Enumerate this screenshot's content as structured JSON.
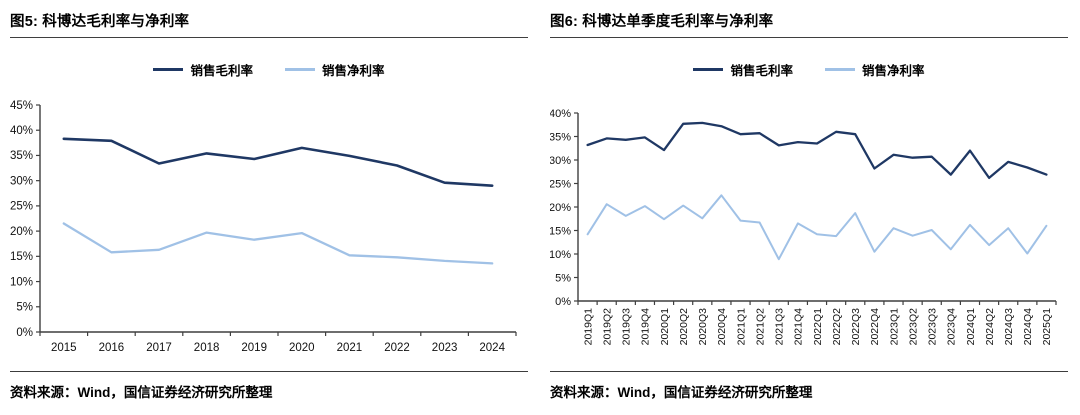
{
  "page": {
    "background": "#ffffff",
    "text_color": "#000000"
  },
  "panels": [
    {
      "title": "图5: 科博达毛利率与净利率",
      "legend": [
        {
          "label": "销售毛利率"
        },
        {
          "label": "销售净利率"
        }
      ],
      "source": "资料来源：Wind，国信证券经济研究所整理"
    },
    {
      "title": "图6: 科博达单季度毛利率与净利率",
      "legend": [
        {
          "label": "销售毛利率"
        },
        {
          "label": "销售净利率"
        }
      ],
      "source": "资料来源：Wind，国信证券经济研究所整理"
    }
  ],
  "chart_data": [
    {
      "type": "line",
      "title": "图5: 科博达毛利率与净利率",
      "xlabel": "",
      "ylabel": "",
      "categories": [
        "2015",
        "2016",
        "2017",
        "2018",
        "2019",
        "2020",
        "2021",
        "2022",
        "2023",
        "2024"
      ],
      "series": [
        {
          "name": "销售毛利率",
          "color": "#1F3864",
          "values": [
            38.3,
            37.9,
            33.4,
            35.4,
            34.3,
            36.5,
            34.9,
            33.0,
            29.6,
            29.0
          ]
        },
        {
          "name": "销售净利率",
          "color": "#A0C1E6",
          "values": [
            21.5,
            15.8,
            16.3,
            19.7,
            18.3,
            19.6,
            15.2,
            14.8,
            14.1,
            13.6
          ]
        }
      ],
      "ylim": [
        0,
        45
      ],
      "y_step": 5,
      "y_suffix": "%",
      "grid": false,
      "legend_position": "top",
      "x_label_rotation": 0
    },
    {
      "type": "line",
      "title": "图6: 科博达单季度毛利率与净利率",
      "xlabel": "",
      "ylabel": "",
      "categories": [
        "2019Q1",
        "2019Q2",
        "2019Q3",
        "2019Q4",
        "2020Q1",
        "2020Q2",
        "2020Q3",
        "2020Q4",
        "2021Q1",
        "2021Q2",
        "2021Q3",
        "2021Q4",
        "2022Q1",
        "2022Q2",
        "2022Q3",
        "2022Q4",
        "2023Q1",
        "2023Q2",
        "2023Q3",
        "2023Q4",
        "2024Q1",
        "2024Q2",
        "2024Q3",
        "2024Q4",
        "2025Q1"
      ],
      "series": [
        {
          "name": "销售毛利率",
          "color": "#1F3864",
          "values": [
            33.2,
            34.6,
            34.3,
            34.8,
            32.1,
            37.7,
            37.9,
            37.2,
            35.5,
            35.7,
            33.1,
            33.8,
            33.5,
            36.0,
            35.5,
            28.2,
            31.1,
            30.5,
            30.7,
            26.9,
            32.0,
            26.2,
            29.6,
            28.4,
            26.9
          ]
        },
        {
          "name": "销售净利率",
          "color": "#A0C1E6",
          "values": [
            14.2,
            20.6,
            18.1,
            20.2,
            17.4,
            20.3,
            17.6,
            22.5,
            17.1,
            16.7,
            8.9,
            16.5,
            14.2,
            13.8,
            18.7,
            10.5,
            15.5,
            13.9,
            15.1,
            11.0,
            16.2,
            11.9,
            15.5,
            10.1,
            16.0
          ]
        }
      ],
      "ylim": [
        0,
        40
      ],
      "y_step": 5,
      "y_suffix": "%",
      "grid": false,
      "legend_position": "top",
      "x_label_rotation": 90
    }
  ]
}
